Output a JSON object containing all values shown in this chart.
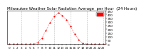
{
  "title": "Milwaukee Weather Solar Radiation Average  per Hour  (24 Hours)",
  "hours": [
    0,
    1,
    2,
    3,
    4,
    5,
    6,
    7,
    8,
    9,
    10,
    11,
    12,
    13,
    14,
    15,
    16,
    17,
    18,
    19,
    20,
    21,
    22,
    23
  ],
  "solar": [
    0,
    0,
    0,
    0,
    0,
    0,
    2,
    18,
    80,
    185,
    290,
    380,
    420,
    390,
    330,
    240,
    140,
    55,
    10,
    1,
    0,
    0,
    0,
    0
  ],
  "line_color": "#ff0000",
  "bg_color": "#ffffff",
  "plot_bg": "#ffffff",
  "grid_color": "#bbbbbb",
  "grid_positions": [
    3,
    7,
    11,
    15,
    19,
    23
  ],
  "legend_box_color": "#ff0000",
  "ylim": [
    0,
    450
  ],
  "xlim": [
    -0.5,
    23.5
  ],
  "yticks": [
    0,
    50,
    100,
    150,
    200,
    250,
    300,
    350,
    400,
    450
  ],
  "ytick_labels": [
    "0",
    "50",
    "100",
    "150",
    "200",
    "250",
    "300",
    "350",
    "400",
    "450"
  ],
  "xticks": [
    0,
    1,
    2,
    3,
    4,
    5,
    6,
    7,
    8,
    9,
    10,
    11,
    12,
    13,
    14,
    15,
    16,
    17,
    18,
    19,
    20,
    21,
    22,
    23
  ],
  "xtick_labels": [
    "0",
    "1",
    "2",
    "3",
    "4",
    "5",
    "6",
    "7",
    "8",
    "9",
    "10",
    "11",
    "12",
    "13",
    "14",
    "15",
    "16",
    "17",
    "18",
    "19",
    "20",
    "21",
    "22",
    "23"
  ],
  "title_fontsize": 4.0,
  "tick_fontsize": 3.0,
  "marker_size": 1.2,
  "line_width": 0.5
}
